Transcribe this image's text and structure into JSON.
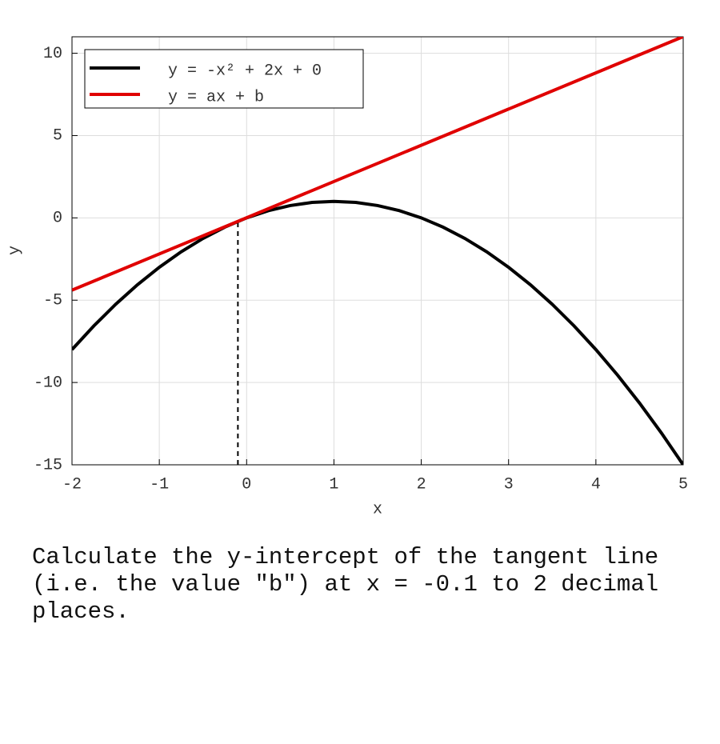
{
  "chart_data": {
    "type": "line",
    "xlabel": "x",
    "ylabel": "y",
    "xlim": [
      -2,
      5
    ],
    "ylim": [
      -15,
      11
    ],
    "xticks": [
      -2,
      -1,
      0,
      1,
      2,
      3,
      4,
      5
    ],
    "yticks": [
      -15,
      -10,
      -5,
      0,
      5,
      10
    ],
    "grid": true,
    "legend": "upper left",
    "series": [
      {
        "name": "y = -x² + 2x + 0",
        "color": "#000000",
        "x": [
          -2,
          -1.75,
          -1.5,
          -1.25,
          -1,
          -0.75,
          -0.5,
          -0.25,
          0,
          0.25,
          0.5,
          0.75,
          1,
          1.25,
          1.5,
          1.75,
          2,
          2.25,
          2.5,
          2.75,
          3,
          3.25,
          3.5,
          3.75,
          4,
          4.25,
          4.5,
          4.75,
          5
        ],
        "values": [
          -8,
          -6.5625,
          -5.25,
          -4.0625,
          -3,
          -2.0625,
          -1.25,
          -0.5625,
          0,
          0.4375,
          0.75,
          0.9375,
          1,
          0.9375,
          0.75,
          0.4375,
          0,
          -0.5625,
          -1.25,
          -2.0625,
          -3,
          -4.0625,
          -5.25,
          -6.5625,
          -8,
          -9.5625,
          -11.25,
          -13.0625,
          -15
        ]
      },
      {
        "name": "y = ax + b",
        "color": "#e00000",
        "x": [
          -2,
          5
        ],
        "values": [
          -4.39,
          11.01
        ]
      }
    ],
    "marker": {
      "x": -0.1,
      "y": -0.21
    }
  },
  "question": "Calculate the y-intercept of the tangent line (i.e. the value \"b\") at x = -0.1 to 2 decimal places."
}
